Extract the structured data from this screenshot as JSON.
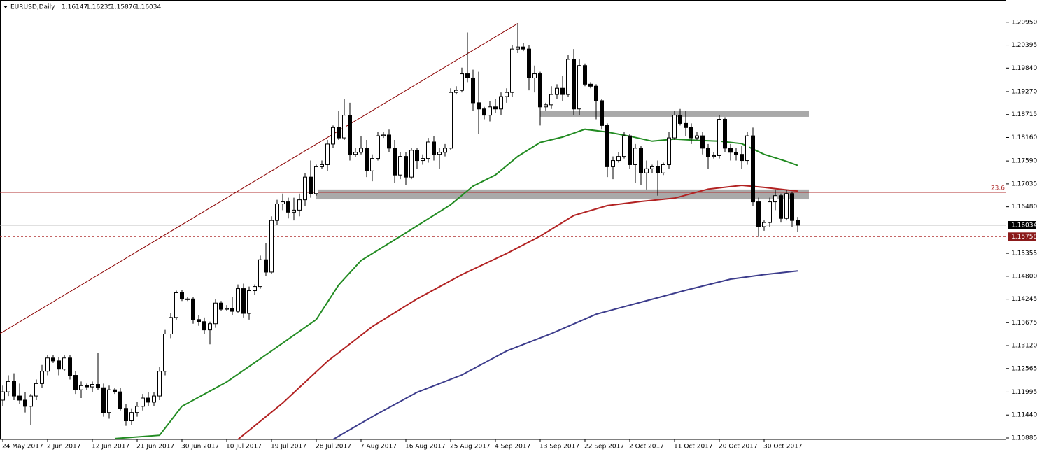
{
  "chart_data": {
    "type": "candlestick",
    "symbol": "EURUSD,Daily",
    "xlim": [
      -0.5,
      179.25
    ],
    "ylim": [
      1.10851,
      1.21488
    ],
    "xticks": [
      {
        "value": 0,
        "label": "24 May 2017"
      },
      {
        "value": 8,
        "label": "2 Jun 2017"
      },
      {
        "value": 16,
        "label": "12 Jun 2017"
      },
      {
        "value": 24,
        "label": "21 Jun 2017"
      },
      {
        "value": 32,
        "label": "30 Jun 2017"
      },
      {
        "value": 40,
        "label": "10 Jul 2017"
      },
      {
        "value": 48,
        "label": "19 Jul 2017"
      },
      {
        "value": 56,
        "label": "28 Jul 2017"
      },
      {
        "value": 64,
        "label": "7 Aug 2017"
      },
      {
        "value": 72,
        "label": "16 Aug 2017"
      },
      {
        "value": 80,
        "label": "25 Aug 2017"
      },
      {
        "value": 88,
        "label": "4 Sep 2017"
      },
      {
        "value": 96,
        "label": "13 Sep 2017"
      },
      {
        "value": 104,
        "label": "22 Sep 2017"
      },
      {
        "value": 112,
        "label": "2 Oct 2017"
      },
      {
        "value": 120,
        "label": "11 Oct 2017"
      },
      {
        "value": 128,
        "label": "20 Oct 2017"
      },
      {
        "value": 136,
        "label": "30 Oct 2017"
      }
    ],
    "yticks": [
      {
        "value": 1.2095,
        "label": "1.20950"
      },
      1.20395,
      {
        "value": 1.1984,
        "label": "1.19840"
      },
      {
        "value": 1.1927,
        "label": "1.19270"
      },
      1.18715,
      {
        "value": 1.1816,
        "label": "1.18160"
      },
      {
        "value": 1.1759,
        "label": "1.17590"
      },
      1.17035,
      {
        "value": 1.1648,
        "label": "1.16480"
      },
      1.15355,
      {
        "value": 1.148,
        "label": "1.14800"
      },
      1.14245,
      1.13675,
      {
        "value": 1.1312,
        "label": "1.13120"
      },
      1.12565,
      1.11995,
      {
        "value": 1.1144,
        "label": "1.11440"
      },
      1.10885
    ],
    "open": [
      1.118,
      1.12,
      1.1225,
      1.119,
      1.118,
      1.1165,
      1.119,
      1.122,
      1.125,
      1.1282,
      1.1275,
      1.1255,
      1.1282,
      1.124,
      1.1205,
      1.1215,
      1.1212,
      1.1218,
      1.121,
      1.115,
      1.1205,
      1.12,
      1.116,
      1.113,
      1.115,
      1.1165,
      1.1185,
      1.1175,
      1.119,
      1.125,
      1.134,
      1.138,
      1.144,
      1.1425,
      1.1425,
      1.1375,
      1.137,
      1.135,
      1.1365,
      1.1415,
      1.14,
      1.1402,
      1.1395,
      1.145,
      1.139,
      1.1445,
      1.1455,
      1.152,
      1.149,
      1.1615,
      1.1655,
      1.166,
      1.1635,
      1.164,
      1.1665,
      1.172,
      1.168,
      1.1745,
      1.175,
      1.18,
      1.184,
      1.1815,
      1.187,
      1.1775,
      1.178,
      1.179,
      1.1735,
      1.1765,
      1.182,
      1.1822,
      1.179,
      1.1725,
      1.177,
      1.172,
      1.1785,
      1.176,
      1.1765,
      1.1805,
      1.1775,
      1.178,
      1.179,
      1.1925,
      1.193,
      1.197,
      1.196,
      1.19,
      1.1885,
      1.187,
      1.189,
      1.1885,
      1.1915,
      1.1925,
      1.203,
      1.2035,
      1.203,
      1.196,
      1.197,
      1.189,
      1.1895,
      1.192,
      1.1935,
      1.192,
      1.2005,
      1.1885,
      1.199,
      1.1945,
      1.194,
      1.1905,
      1.1845,
      1.1745,
      1.176,
      1.177,
      1.182,
      1.175,
      1.179,
      1.173,
      1.174,
      1.1745,
      1.173,
      1.175,
      1.1815,
      1.187,
      1.185,
      1.184,
      1.1815,
      1.182,
      1.179,
      1.177,
      1.1772,
      1.186,
      1.179,
      1.178,
      1.1775,
      1.176,
      1.182,
      1.166,
      1.16,
      1.161,
      1.166,
      1.1675,
      1.162,
      1.168,
      1.16147
    ],
    "high": [
      1.1215,
      1.124,
      1.1245,
      1.122,
      1.12,
      1.1195,
      1.123,
      1.1265,
      1.129,
      1.129,
      1.1285,
      1.129,
      1.129,
      1.125,
      1.1225,
      1.122,
      1.1225,
      1.1295,
      1.122,
      1.1215,
      1.121,
      1.121,
      1.117,
      1.116,
      1.1175,
      1.1195,
      1.12,
      1.12,
      1.126,
      1.135,
      1.139,
      1.1445,
      1.1447,
      1.143,
      1.143,
      1.1385,
      1.138,
      1.137,
      1.1425,
      1.142,
      1.141,
      1.143,
      1.146,
      1.1462,
      1.1455,
      1.146,
      1.153,
      1.156,
      1.1625,
      1.1665,
      1.168,
      1.167,
      1.167,
      1.168,
      1.173,
      1.176,
      1.175,
      1.176,
      1.181,
      1.1845,
      1.188,
      1.191,
      1.19,
      1.179,
      1.182,
      1.181,
      1.1775,
      1.183,
      1.183,
      1.1835,
      1.181,
      1.178,
      1.178,
      1.179,
      1.179,
      1.1775,
      1.1815,
      1.182,
      1.179,
      1.18,
      1.1935,
      1.194,
      1.1985,
      1.207,
      1.198,
      1.1975,
      1.189,
      1.1905,
      1.191,
      1.1925,
      1.1935,
      1.204,
      1.2092,
      1.2045,
      1.204,
      1.199,
      1.1975,
      1.19,
      1.194,
      1.1945,
      1.1965,
      1.2015,
      1.203,
      1.2005,
      1.1995,
      1.195,
      1.1945,
      1.191,
      1.185,
      1.177,
      1.178,
      1.183,
      1.1825,
      1.18,
      1.1795,
      1.176,
      1.175,
      1.176,
      1.1755,
      1.183,
      1.188,
      1.1885,
      1.188,
      1.185,
      1.183,
      1.183,
      1.18,
      1.178,
      1.187,
      1.1865,
      1.18,
      1.179,
      1.1795,
      1.183,
      1.184,
      1.167,
      1.1615,
      1.167,
      1.169,
      1.168,
      1.169,
      1.1685,
      1.16235
    ],
    "low": [
      1.1165,
      1.119,
      1.118,
      1.117,
      1.115,
      1.112,
      1.118,
      1.121,
      1.124,
      1.127,
      1.124,
      1.125,
      1.123,
      1.1195,
      1.1185,
      1.1205,
      1.12,
      1.1205,
      1.114,
      1.1135,
      1.1195,
      1.1155,
      1.1118,
      1.112,
      1.114,
      1.1155,
      1.1165,
      1.1165,
      1.118,
      1.124,
      1.133,
      1.1375,
      1.142,
      1.142,
      1.1365,
      1.136,
      1.134,
      1.1315,
      1.1355,
      1.1395,
      1.1395,
      1.1385,
      1.139,
      1.138,
      1.1375,
      1.1435,
      1.145,
      1.148,
      1.1485,
      1.1605,
      1.164,
      1.162,
      1.1615,
      1.1625,
      1.165,
      1.167,
      1.1675,
      1.174,
      1.1735,
      1.179,
      1.181,
      1.181,
      1.176,
      1.1768,
      1.1775,
      1.172,
      1.171,
      1.176,
      1.1815,
      1.178,
      1.1705,
      1.1715,
      1.17,
      1.1715,
      1.174,
      1.175,
      1.1755,
      1.176,
      1.174,
      1.177,
      1.1785,
      1.192,
      1.1925,
      1.195,
      1.188,
      1.1825,
      1.186,
      1.1855,
      1.1875,
      1.187,
      1.19,
      1.1915,
      1.202,
      1.2025,
      1.193,
      1.1925,
      1.1845,
      1.188,
      1.1885,
      1.191,
      1.1905,
      1.1915,
      1.187,
      1.187,
      1.194,
      1.1935,
      1.186,
      1.1835,
      1.172,
      1.1715,
      1.1755,
      1.1765,
      1.174,
      1.1705,
      1.17,
      1.169,
      1.173,
      1.1675,
      1.1725,
      1.174,
      1.181,
      1.1845,
      1.182,
      1.18,
      1.181,
      1.1775,
      1.174,
      1.1765,
      1.1765,
      1.178,
      1.176,
      1.176,
      1.174,
      1.175,
      1.165,
      1.1575,
      1.159,
      1.16,
      1.164,
      1.161,
      1.1615,
      1.16,
      1.15876
    ],
    "close": [
      1.12,
      1.1225,
      1.119,
      1.118,
      1.1165,
      1.119,
      1.122,
      1.125,
      1.1282,
      1.1275,
      1.1255,
      1.1282,
      1.124,
      1.1205,
      1.1215,
      1.1212,
      1.1218,
      1.121,
      1.115,
      1.1205,
      1.12,
      1.116,
      1.113,
      1.115,
      1.1165,
      1.1185,
      1.1175,
      1.119,
      1.125,
      1.134,
      1.138,
      1.144,
      1.1425,
      1.1425,
      1.1375,
      1.137,
      1.135,
      1.1365,
      1.1415,
      1.14,
      1.1402,
      1.1395,
      1.145,
      1.139,
      1.1445,
      1.1455,
      1.152,
      1.149,
      1.1615,
      1.1655,
      1.166,
      1.1635,
      1.164,
      1.1665,
      1.172,
      1.168,
      1.1745,
      1.175,
      1.18,
      1.184,
      1.1815,
      1.187,
      1.1775,
      1.178,
      1.179,
      1.1735,
      1.1765,
      1.182,
      1.1822,
      1.179,
      1.1725,
      1.177,
      1.172,
      1.1785,
      1.176,
      1.1765,
      1.1805,
      1.1775,
      1.178,
      1.179,
      1.1925,
      1.193,
      1.197,
      1.196,
      1.19,
      1.1885,
      1.187,
      1.189,
      1.1885,
      1.1915,
      1.1925,
      1.203,
      1.2035,
      1.203,
      1.196,
      1.197,
      1.189,
      1.1895,
      1.192,
      1.1935,
      1.192,
      1.2005,
      1.1885,
      1.199,
      1.1945,
      1.194,
      1.1905,
      1.1845,
      1.1745,
      1.176,
      1.177,
      1.182,
      1.175,
      1.179,
      1.173,
      1.174,
      1.1745,
      1.173,
      1.175,
      1.1815,
      1.187,
      1.185,
      1.184,
      1.1815,
      1.182,
      1.179,
      1.177,
      1.1772,
      1.186,
      1.179,
      1.178,
      1.1775,
      1.176,
      1.182,
      1.166,
      1.16,
      1.161,
      1.166,
      1.1675,
      1.162,
      1.168,
      1.1615,
      1.16034
    ],
    "ma": [
      {
        "color": "#228b22",
        "x": [
          20,
          28,
          32,
          40,
          48,
          56,
          60,
          64,
          72,
          80,
          84,
          88,
          92,
          96,
          100,
          104,
          108,
          112,
          116,
          120,
          124,
          128,
          132,
          136,
          140,
          142
        ],
        "values": [
          1.1087,
          1.1095,
          1.1165,
          1.1224,
          1.1299,
          1.1375,
          1.1459,
          1.1518,
          1.1585,
          1.1653,
          1.1698,
          1.1725,
          1.177,
          1.1804,
          1.1817,
          1.1836,
          1.1829,
          1.1819,
          1.1807,
          1.1812,
          1.1809,
          1.1807,
          1.1801,
          1.1775,
          1.1758,
          1.1748
        ]
      },
      {
        "color": "#b22222",
        "x": [
          42,
          50,
          58,
          66,
          74,
          82,
          90,
          96,
          102,
          108,
          114,
          120,
          126,
          132,
          136,
          142
        ],
        "values": [
          1.1085,
          1.1173,
          1.1274,
          1.1358,
          1.1425,
          1.1484,
          1.1535,
          1.1577,
          1.1627,
          1.1651,
          1.1661,
          1.1669,
          1.1691,
          1.17,
          1.1695,
          1.1686
        ]
      },
      {
        "color": "#3c3c8c",
        "x": [
          59,
          66,
          74,
          82,
          90,
          98,
          106,
          114,
          122,
          130,
          136,
          142
        ],
        "values": [
          1.1085,
          1.114,
          1.1199,
          1.1241,
          1.1299,
          1.1341,
          1.1388,
          1.1417,
          1.1446,
          1.1473,
          1.1484,
          1.1493
        ]
      }
    ],
    "trendline": {
      "color": "#8b0000",
      "x": [
        -0.5,
        92
      ],
      "y": [
        1.1341,
        1.2092
      ]
    },
    "zones": [
      {
        "x": [
          96,
          144
        ],
        "y": [
          1.1866,
          1.188
        ]
      },
      {
        "x": [
          56,
          144
        ],
        "y": [
          1.1666,
          1.169
        ]
      }
    ],
    "fib_price": 1.1683,
    "fib_label": "23.6",
    "alert_price": 1.15758
  }
}
